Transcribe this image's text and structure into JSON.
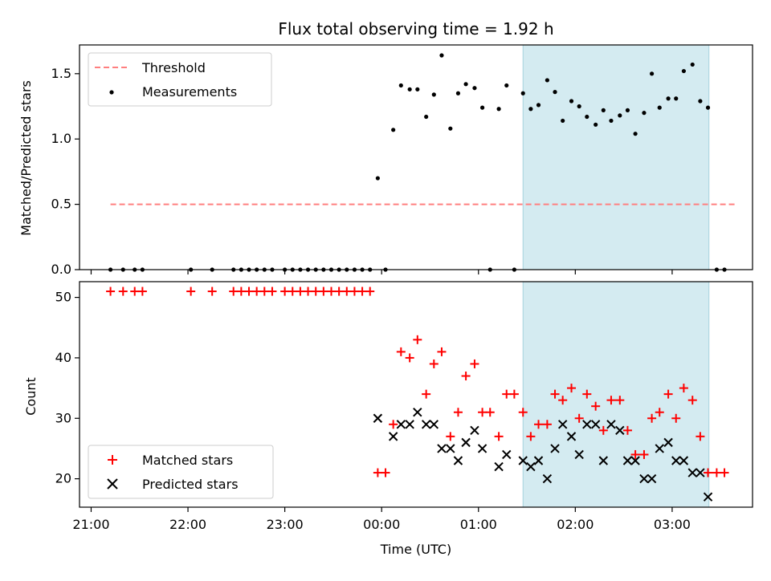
{
  "title": "Flux total observing time = 1.92 h",
  "colors": {
    "threshold": "#ff7f7f",
    "measurement": "#000000",
    "matched": "#ff0000",
    "predicted": "#000000",
    "shade": "#d4ebf1",
    "shade_edge": "#a6d3dd"
  },
  "chart_data": [
    {
      "type": "scatter",
      "panel": "top",
      "ylabel": "Matched/Predicted stars",
      "xlim_hours": [
        20.88,
        27.83
      ],
      "ylim": [
        0,
        1.72
      ],
      "yticks": [
        0.0,
        0.5,
        1.0,
        1.5
      ],
      "ytick_labels": [
        "0.0",
        "0.5",
        "1.0",
        "1.5"
      ],
      "shaded_range_hours": [
        25.46,
        27.38
      ],
      "legend": {
        "position": "top-left",
        "threshold_label": "Threshold",
        "measurements_label": "Measurements"
      },
      "threshold": {
        "value": 0.5,
        "x_hours": [
          21.2,
          27.67
        ]
      },
      "measurements": [
        [
          21.2,
          0
        ],
        [
          21.33,
          0
        ],
        [
          21.45,
          0
        ],
        [
          21.53,
          0
        ],
        [
          22.03,
          0
        ],
        [
          22.25,
          0
        ],
        [
          22.47,
          0
        ],
        [
          22.55,
          0
        ],
        [
          22.63,
          0
        ],
        [
          22.71,
          0
        ],
        [
          22.79,
          0
        ],
        [
          22.87,
          0
        ],
        [
          23.0,
          0
        ],
        [
          23.08,
          0
        ],
        [
          23.16,
          0
        ],
        [
          23.24,
          0
        ],
        [
          23.32,
          0
        ],
        [
          23.4,
          0
        ],
        [
          23.48,
          0
        ],
        [
          23.56,
          0
        ],
        [
          23.64,
          0
        ],
        [
          23.72,
          0
        ],
        [
          23.8,
          0
        ],
        [
          23.88,
          0
        ],
        [
          23.96,
          0.7
        ],
        [
          24.04,
          0
        ],
        [
          24.12,
          1.07
        ],
        [
          24.2,
          1.41
        ],
        [
          24.29,
          1.38
        ],
        [
          24.37,
          1.38
        ],
        [
          24.46,
          1.17
        ],
        [
          24.54,
          1.34
        ],
        [
          24.62,
          1.64
        ],
        [
          24.71,
          1.08
        ],
        [
          24.79,
          1.35
        ],
        [
          24.87,
          1.42
        ],
        [
          24.96,
          1.39
        ],
        [
          25.04,
          1.24
        ],
        [
          25.12,
          0
        ],
        [
          25.21,
          1.23
        ],
        [
          25.29,
          1.41
        ],
        [
          25.37,
          0
        ],
        [
          25.46,
          1.35
        ],
        [
          25.54,
          1.23
        ],
        [
          25.62,
          1.26
        ],
        [
          25.71,
          1.45
        ],
        [
          25.79,
          1.36
        ],
        [
          25.87,
          1.14
        ],
        [
          25.96,
          1.29
        ],
        [
          26.04,
          1.25
        ],
        [
          26.12,
          1.17
        ],
        [
          26.21,
          1.11
        ],
        [
          26.29,
          1.22
        ],
        [
          26.37,
          1.14
        ],
        [
          26.46,
          1.18
        ],
        [
          26.54,
          1.22
        ],
        [
          26.62,
          1.04
        ],
        [
          26.71,
          1.2
        ],
        [
          26.79,
          1.5
        ],
        [
          26.87,
          1.24
        ],
        [
          26.96,
          1.31
        ],
        [
          27.04,
          1.31
        ],
        [
          27.12,
          1.52
        ],
        [
          27.21,
          1.57
        ],
        [
          27.29,
          1.29
        ],
        [
          27.37,
          1.24
        ],
        [
          27.46,
          0
        ],
        [
          27.54,
          0
        ]
      ]
    },
    {
      "type": "scatter",
      "panel": "bottom",
      "xlabel": "Time (UTC)",
      "ylabel": "Count",
      "xlim_hours": [
        20.88,
        27.83
      ],
      "ylim": [
        15.3,
        52.6
      ],
      "yticks": [
        20,
        30,
        40,
        50
      ],
      "ytick_labels": [
        "20",
        "30",
        "40",
        "50"
      ],
      "xticks_hours": [
        21,
        22,
        23,
        24,
        25,
        26,
        27
      ],
      "xtick_labels": [
        "21:00",
        "22:00",
        "23:00",
        "00:00",
        "01:00",
        "02:00",
        "03:00"
      ],
      "shaded_range_hours": [
        25.46,
        27.38
      ],
      "legend": {
        "position": "bottom-left",
        "matched_label": "Matched stars",
        "predicted_label": "Predicted stars"
      },
      "matched": [
        [
          21.2,
          51
        ],
        [
          21.33,
          51
        ],
        [
          21.45,
          51
        ],
        [
          21.53,
          51
        ],
        [
          22.03,
          51
        ],
        [
          22.25,
          51
        ],
        [
          22.47,
          51
        ],
        [
          22.55,
          51
        ],
        [
          22.63,
          51
        ],
        [
          22.71,
          51
        ],
        [
          22.79,
          51
        ],
        [
          22.87,
          51
        ],
        [
          23.0,
          51
        ],
        [
          23.08,
          51
        ],
        [
          23.16,
          51
        ],
        [
          23.24,
          51
        ],
        [
          23.32,
          51
        ],
        [
          23.4,
          51
        ],
        [
          23.48,
          51
        ],
        [
          23.56,
          51
        ],
        [
          23.64,
          51
        ],
        [
          23.72,
          51
        ],
        [
          23.8,
          51
        ],
        [
          23.88,
          51
        ],
        [
          23.96,
          21
        ],
        [
          24.04,
          21
        ],
        [
          24.12,
          29
        ],
        [
          24.2,
          41
        ],
        [
          24.29,
          40
        ],
        [
          24.37,
          43
        ],
        [
          24.46,
          34
        ],
        [
          24.54,
          39
        ],
        [
          24.62,
          41
        ],
        [
          24.71,
          27
        ],
        [
          24.79,
          31
        ],
        [
          24.87,
          37
        ],
        [
          24.96,
          39
        ],
        [
          25.04,
          31
        ],
        [
          25.12,
          31
        ],
        [
          25.21,
          27
        ],
        [
          25.29,
          34
        ],
        [
          25.37,
          34
        ],
        [
          25.46,
          31
        ],
        [
          25.54,
          27
        ],
        [
          25.62,
          29
        ],
        [
          25.71,
          29
        ],
        [
          25.79,
          34
        ],
        [
          25.87,
          33
        ],
        [
          25.96,
          35
        ],
        [
          26.04,
          30
        ],
        [
          26.12,
          34
        ],
        [
          26.21,
          32
        ],
        [
          26.29,
          28
        ],
        [
          26.37,
          33
        ],
        [
          26.46,
          33
        ],
        [
          26.54,
          28
        ],
        [
          26.62,
          24
        ],
        [
          26.71,
          24
        ],
        [
          26.79,
          30
        ],
        [
          26.87,
          31
        ],
        [
          26.96,
          34
        ],
        [
          27.04,
          30
        ],
        [
          27.12,
          35
        ],
        [
          27.21,
          33
        ],
        [
          27.29,
          27
        ],
        [
          27.37,
          21
        ],
        [
          27.46,
          21
        ],
        [
          27.54,
          21
        ]
      ],
      "predicted": [
        [
          23.96,
          30
        ],
        [
          24.12,
          27
        ],
        [
          24.2,
          29
        ],
        [
          24.29,
          29
        ],
        [
          24.37,
          31
        ],
        [
          24.46,
          29
        ],
        [
          24.54,
          29
        ],
        [
          24.62,
          25
        ],
        [
          24.71,
          25
        ],
        [
          24.79,
          23
        ],
        [
          24.87,
          26
        ],
        [
          24.96,
          28
        ],
        [
          25.04,
          25
        ],
        [
          25.21,
          22
        ],
        [
          25.29,
          24
        ],
        [
          25.46,
          23
        ],
        [
          25.54,
          22
        ],
        [
          25.62,
          23
        ],
        [
          25.71,
          20
        ],
        [
          25.79,
          25
        ],
        [
          25.87,
          29
        ],
        [
          25.96,
          27
        ],
        [
          26.04,
          24
        ],
        [
          26.12,
          29
        ],
        [
          26.21,
          29
        ],
        [
          26.29,
          23
        ],
        [
          26.37,
          29
        ],
        [
          26.46,
          28
        ],
        [
          26.54,
          23
        ],
        [
          26.62,
          23
        ],
        [
          26.71,
          20
        ],
        [
          26.79,
          20
        ],
        [
          26.87,
          25
        ],
        [
          26.96,
          26
        ],
        [
          27.04,
          23
        ],
        [
          27.12,
          23
        ],
        [
          27.21,
          21
        ],
        [
          27.29,
          21
        ],
        [
          27.37,
          17
        ]
      ]
    }
  ]
}
